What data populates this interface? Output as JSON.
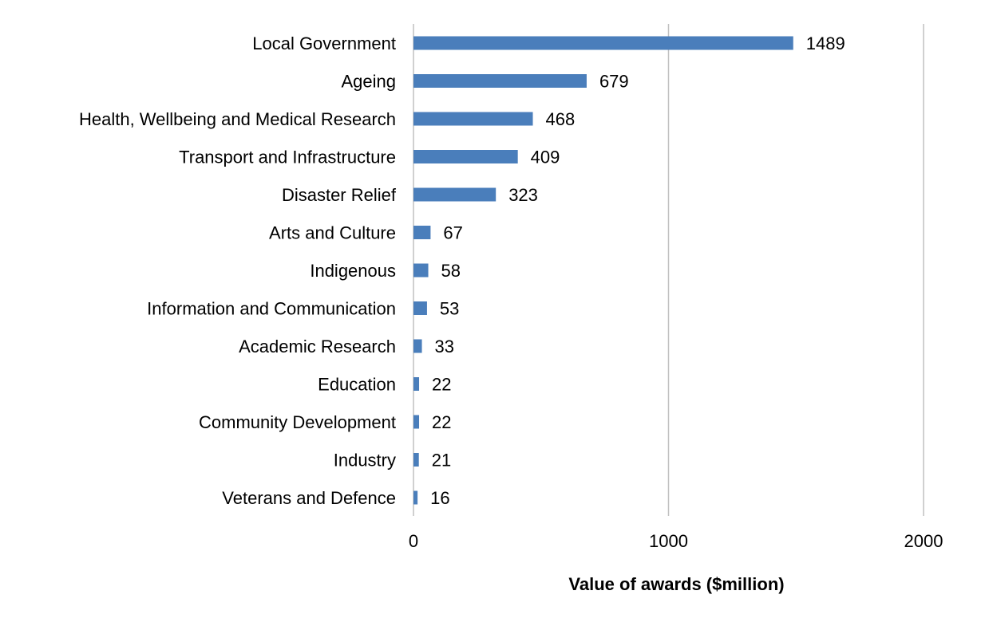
{
  "chart_data": {
    "type": "bar",
    "orientation": "horizontal",
    "categories": [
      "Local Government",
      "Ageing",
      "Health, Wellbeing and Medical Research",
      "Transport and Infrastructure",
      "Disaster Relief",
      "Arts and Culture",
      "Indigenous",
      "Information and Communication",
      "Academic Research",
      "Education",
      "Community Development",
      "Industry",
      "Veterans and Defence"
    ],
    "values": [
      1489,
      679,
      468,
      409,
      323,
      67,
      58,
      53,
      33,
      22,
      22,
      21,
      16
    ],
    "title": "",
    "xlabel": "Value of awards ($million)",
    "ylabel": "",
    "xlim": [
      0,
      2000
    ],
    "xticks": [
      0,
      1000,
      2000
    ],
    "grid": "vertical",
    "legend": "none",
    "data_labels": true,
    "bar_color": "#4a7ebb",
    "grid_color": "#c0c0c0"
  }
}
